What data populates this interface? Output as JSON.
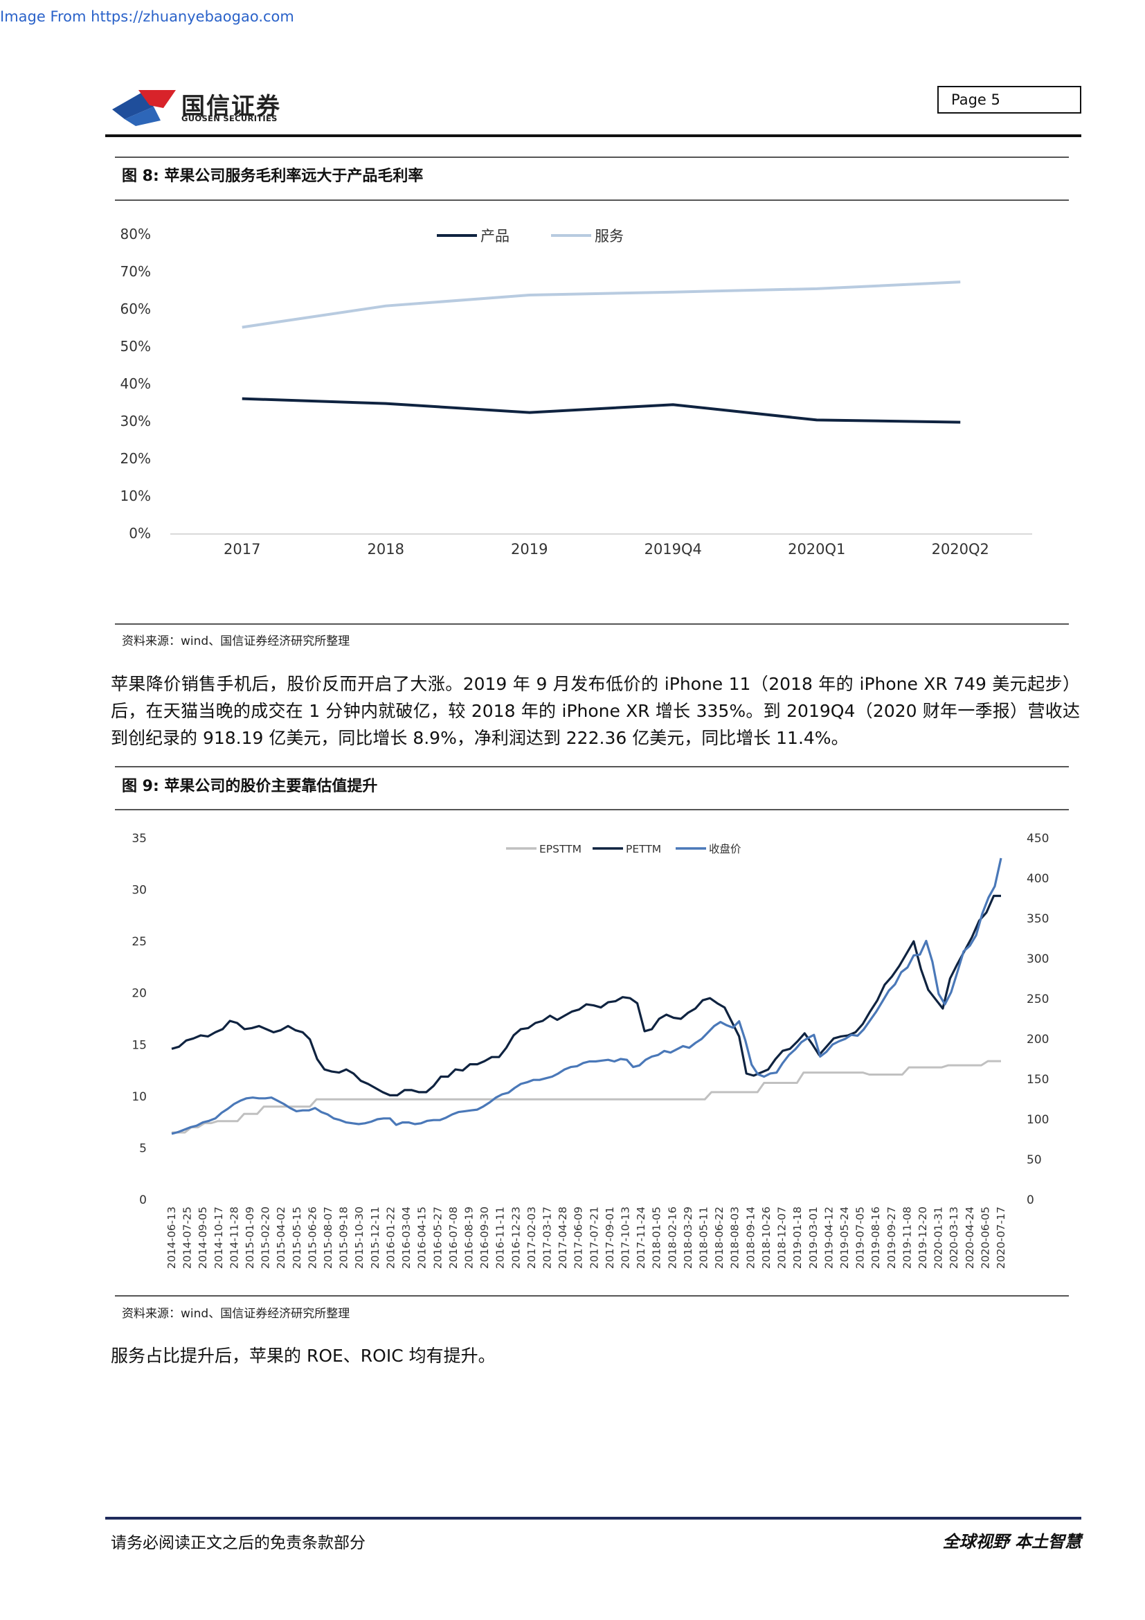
{
  "top_source": "Image From https://zhuanyebaogao.com",
  "header": {
    "logo_cn": "国信证券",
    "logo_en": "GUOSEN SECURITIES",
    "page_label": "Page  5",
    "logo_colors": {
      "red": "#d8232a",
      "blue": "#1f4e9b"
    }
  },
  "figure8": {
    "title": "图 8:  苹果公司服务毛利率远大于产品毛利率",
    "source": "资料来源：wind、国信证券经济研究所整理"
  },
  "paragraph1": "苹果降价销售手机后，股价反而开启了大涨。2019 年 9 月发布低价的 iPhone 11（2018 年的 iPhone XR 749 美元起步）后，在天猫当晚的成交在 1 分钟内就破亿，较 2018 年的 iPhone XR 增长 335%。到 2019Q4（2020 财年一季报）营收达到创纪录的 918.19 亿美元，同比增长 8.9%，净利润达到 222.36 亿美元，同比增长 11.4%。",
  "figure9": {
    "title": "图 9:  苹果公司的股价主要靠估值提升",
    "source": "资料来源：wind、国信证券经济研究所整理"
  },
  "paragraph2": "服务占比提升后，苹果的 ROE、ROIC 均有提升。",
  "footer": {
    "left": "请务必阅读正文之后的免责条款部分",
    "right": "全球视野  本土智慧"
  },
  "chart_data": [
    {
      "type": "line",
      "categories": [
        "2017",
        "2018",
        "2019",
        "2019Q4",
        "2020Q1",
        "2020Q2"
      ],
      "series": [
        {
          "name": "产品",
          "color": "#0f2340",
          "values": [
            36,
            34.7,
            32.3,
            34.4,
            30.3,
            29.7
          ]
        },
        {
          "name": "服务",
          "color": "#b8cbe0",
          "values": [
            55.1,
            60.8,
            63.7,
            64.5,
            65.4,
            67.2
          ]
        }
      ],
      "y_ticks": [
        "0%",
        "10%",
        "20%",
        "30%",
        "40%",
        "50%",
        "60%",
        "70%",
        "80%"
      ],
      "ylim": [
        0,
        80
      ],
      "legend": "top-center",
      "grid": false
    },
    {
      "type": "line",
      "legend": "top-center",
      "grid": false,
      "left_axis": {
        "ticks": [
          "0",
          "5",
          "10",
          "15",
          "20",
          "25",
          "30",
          "35"
        ],
        "lim": [
          0,
          35
        ]
      },
      "right_axis": {
        "ticks": [
          "0",
          "50",
          "100",
          "150",
          "200",
          "250",
          "300",
          "350",
          "400",
          "450"
        ],
        "lim": [
          0,
          450
        ]
      },
      "x_labels": [
        "2014-06-13",
        "2014-07-25",
        "2014-09-05",
        "2014-10-17",
        "2014-11-28",
        "2015-01-09",
        "2015-02-20",
        "2015-04-02",
        "2015-05-15",
        "2015-06-26",
        "2015-08-07",
        "2015-09-18",
        "2015-10-30",
        "2015-12-11",
        "2016-01-22",
        "2016-03-04",
        "2016-04-15",
        "2016-05-27",
        "2016-07-08",
        "2016-08-19",
        "2016-09-30",
        "2016-11-11",
        "2016-12-23",
        "2017-02-03",
        "2017-03-17",
        "2017-04-28",
        "2017-06-09",
        "2017-07-21",
        "2017-09-01",
        "2017-10-13",
        "2017-11-24",
        "2018-01-05",
        "2018-02-16",
        "2018-03-29",
        "2018-05-11",
        "2018-06-22",
        "2018-08-03",
        "2018-09-14",
        "2018-10-26",
        "2018-12-07",
        "2019-01-18",
        "2019-03-01",
        "2019-04-12",
        "2019-05-24",
        "2019-07-05",
        "2019-08-16",
        "2019-09-27",
        "2019-11-08",
        "2019-12-20",
        "2020-01-31",
        "2020-03-13",
        "2020-04-24",
        "2020-06-05",
        "2020-07-17"
      ],
      "series": [
        {
          "name": "EPSTTM",
          "axis": "left",
          "color": "#c0c0c0",
          "values": [
            6.5,
            6.5,
            6.5,
            7,
            7,
            7.4,
            7.4,
            7.6,
            7.6,
            7.6,
            7.6,
            8.3,
            8.3,
            8.3,
            9,
            9,
            9,
            9,
            9,
            9,
            9,
            9,
            9.7,
            9.7,
            9.7,
            9.7,
            9.7,
            9.7,
            9.7,
            9.7,
            9.7,
            9.7,
            9.7,
            9.7,
            9.7,
            9.7,
            9.7,
            9.7,
            9.7,
            9.7,
            9.7,
            9.7,
            9.7,
            9.7,
            9.7,
            9.7,
            9.7,
            9.7,
            9.7,
            9.7,
            9.7,
            9.7,
            9.7,
            9.7,
            9.7,
            9.7,
            9.7,
            9.7,
            9.7,
            9.7,
            9.7,
            9.7,
            9.7,
            9.7,
            9.7,
            9.7,
            9.7,
            9.7,
            9.7,
            9.7,
            9.7,
            9.7,
            9.7,
            9.7,
            9.7,
            9.7,
            9.7,
            9.7,
            9.7,
            9.7,
            9.7,
            9.7,
            10.4,
            10.4,
            10.4,
            10.4,
            10.4,
            10.4,
            10.4,
            10.4,
            11.3,
            11.3,
            11.3,
            11.3,
            11.3,
            11.3,
            12.3,
            12.3,
            12.3,
            12.3,
            12.3,
            12.3,
            12.3,
            12.3,
            12.3,
            12.3,
            12.1,
            12.1,
            12.1,
            12.1,
            12.1,
            12.1,
            12.8,
            12.8,
            12.8,
            12.8,
            12.8,
            12.8,
            13,
            13,
            13,
            13,
            13,
            13,
            13.4,
            13.4,
            13.4
          ]
        },
        {
          "name": "PETTM",
          "axis": "left",
          "color": "#0f2340",
          "values": [
            14.6,
            14.8,
            15.4,
            15.6,
            15.9,
            15.8,
            16.2,
            16.5,
            17.3,
            17.1,
            16.5,
            16.6,
            16.8,
            16.5,
            16.2,
            16.4,
            16.8,
            16.4,
            16.2,
            15.5,
            13.6,
            12.6,
            12.4,
            12.3,
            12.6,
            12.2,
            11.5,
            11.2,
            10.8,
            10.4,
            10.1,
            10.1,
            10.6,
            10.6,
            10.4,
            10.4,
            11,
            11.9,
            11.9,
            12.6,
            12.5,
            13.1,
            13.1,
            13.4,
            13.8,
            13.8,
            14.7,
            15.9,
            16.5,
            16.6,
            17.1,
            17.3,
            17.8,
            17.4,
            17.8,
            18.2,
            18.4,
            18.9,
            18.8,
            18.6,
            19.1,
            19.2,
            19.6,
            19.5,
            19,
            16.3,
            16.5,
            17.5,
            17.9,
            17.6,
            17.5,
            18.1,
            18.5,
            19.3,
            19.5,
            19,
            18.6,
            17.2,
            15.8,
            12.2,
            12,
            12.3,
            12.6,
            13.6,
            14.4,
            14.6,
            15.3,
            16.1,
            15.1,
            14,
            14.8,
            15.6,
            15.8,
            15.9,
            16.2,
            17,
            18.2,
            19.3,
            20.8,
            21.6,
            22.6,
            23.8,
            25,
            22.3,
            20.3,
            19.4,
            18.5,
            21.4,
            22.8,
            24.1,
            25.4,
            27,
            27.8,
            29.4,
            29.4
          ]
        },
        {
          "name": "收盘价",
          "axis": "right",
          "color": "#4a78b8",
          "values": [
            82,
            84,
            87,
            90,
            92,
            96,
            98,
            101,
            108,
            113,
            119,
            123,
            126,
            127,
            126,
            126,
            127,
            123,
            119,
            114,
            110,
            111,
            111,
            114,
            109,
            106,
            101,
            99,
            96,
            95,
            94,
            95,
            97,
            100,
            101,
            101,
            93,
            96,
            96,
            94,
            95,
            98,
            99,
            99,
            102,
            106,
            109,
            110,
            111,
            112,
            116,
            121,
            127,
            131,
            133,
            139,
            144,
            146,
            149,
            149,
            151,
            153,
            157,
            162,
            165,
            166,
            170,
            172,
            172,
            173,
            174,
            172,
            175,
            174,
            165,
            167,
            174,
            178,
            180,
            185,
            183,
            187,
            191,
            189,
            195,
            200,
            208,
            216,
            221,
            217,
            214,
            222,
            198,
            168,
            156,
            153,
            157,
            158,
            170,
            180,
            187,
            196,
            201,
            205,
            178,
            184,
            193,
            197,
            200,
            205,
            204,
            212,
            223,
            234,
            247,
            260,
            268,
            283,
            289,
            304,
            305,
            322,
            296,
            256,
            243,
            258,
            283,
            309,
            316,
            329,
            356,
            376,
            390,
            425
          ]
        }
      ]
    }
  ]
}
